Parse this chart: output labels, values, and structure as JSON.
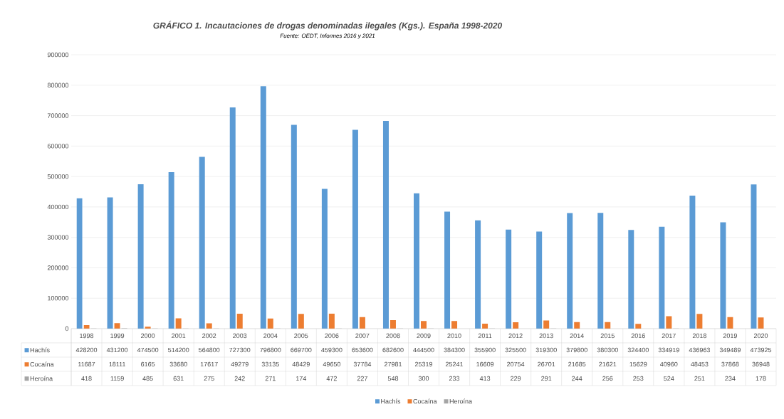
{
  "chart_data": {
    "type": "bar",
    "title": "GRÁFICO 1. Incautaciones de drogas denominadas ilegales (Kgs.). España 1998-2020",
    "subtitle": "Fuente: OEDT, Informes 2016 y 2021",
    "categories": [
      "1998",
      "1999",
      "2000",
      "2001",
      "2002",
      "2003",
      "2004",
      "2005",
      "2006",
      "2007",
      "2008",
      "2009",
      "2010",
      "2011",
      "2012",
      "2013",
      "2014",
      "2015",
      "2016",
      "2017",
      "2018",
      "2019",
      "2020"
    ],
    "series": [
      {
        "name": "Hachís",
        "color": "#5b9bd5",
        "values": [
          428200,
          431200,
          474500,
          514200,
          564800,
          727300,
          796800,
          669700,
          459300,
          653600,
          682600,
          444500,
          384300,
          355900,
          325500,
          319300,
          379800,
          380300,
          324400,
          334919,
          436963,
          349489,
          473925
        ]
      },
      {
        "name": "Cocaína",
        "color": "#ed7d31",
        "values": [
          11687,
          18111,
          6165,
          33680,
          17617,
          49279,
          33135,
          48429,
          49650,
          37784,
          27981,
          25319,
          25241,
          16609,
          20754,
          26701,
          21685,
          21621,
          15629,
          40960,
          48453,
          37868,
          36948
        ]
      },
      {
        "name": "Heroína",
        "color": "#a5a5a5",
        "values": [
          418,
          1159,
          485,
          631,
          275,
          242,
          271,
          174,
          472,
          227,
          548,
          300,
          233,
          413,
          229,
          291,
          244,
          256,
          253,
          524,
          251,
          234,
          178
        ]
      }
    ],
    "ylim": [
      0,
      900000
    ],
    "yticks": [
      0,
      100000,
      200000,
      300000,
      400000,
      500000,
      600000,
      700000,
      800000,
      900000
    ],
    "grid": "y",
    "legend": "bottom",
    "data_labels": true
  }
}
